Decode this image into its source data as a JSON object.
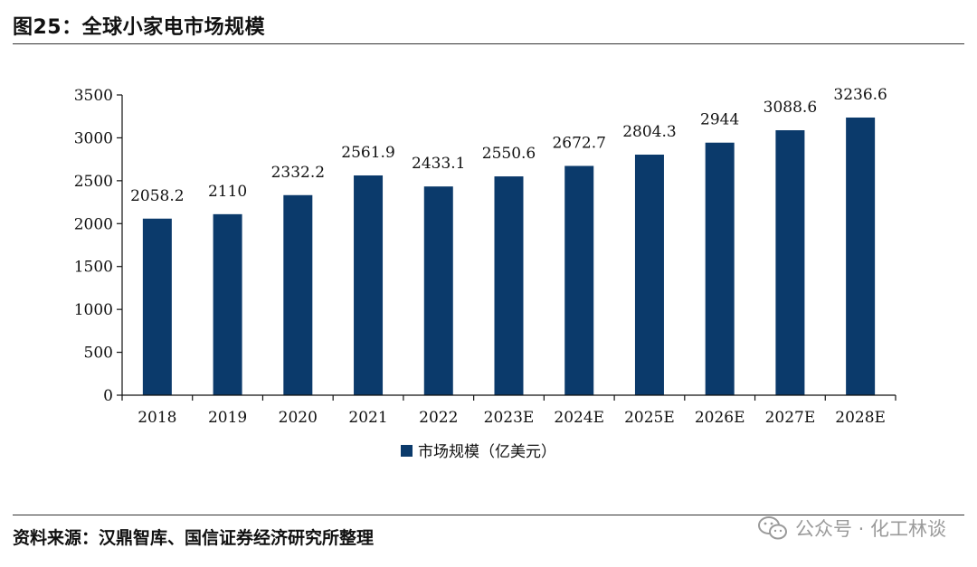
{
  "figure": {
    "title": "图25：全球小家电市场规模",
    "source": "资料来源：汉鼎智库、国信证券经济研究所整理",
    "watermark": "公众号 · 化工林谈"
  },
  "colors": {
    "bar": "#0b3a6b",
    "axis": "#111111"
  },
  "chart_data": {
    "type": "bar",
    "categories": [
      "2018",
      "2019",
      "2020",
      "2021",
      "2022",
      "2023E",
      "2024E",
      "2025E",
      "2026E",
      "2027E",
      "2028E"
    ],
    "series": [
      {
        "name": "市场规模（亿美元）",
        "values": [
          2058.2,
          2110,
          2332.2,
          2561.9,
          2433.1,
          2550.6,
          2672.7,
          2804.3,
          2944,
          3088.6,
          3236.6
        ]
      }
    ],
    "data_labels": [
      "2058.2",
      "2110",
      "2332.2",
      "2561.9",
      "2433.1",
      "2550.6",
      "2672.7",
      "2804.3",
      "2944",
      "3088.6",
      "3236.6"
    ],
    "ylim": [
      0,
      3500
    ],
    "yticks": [
      "0",
      "500",
      "1000",
      "1500",
      "2000",
      "2500",
      "3000",
      "3500"
    ],
    "grid": false,
    "legend_position": "bottom-center"
  }
}
